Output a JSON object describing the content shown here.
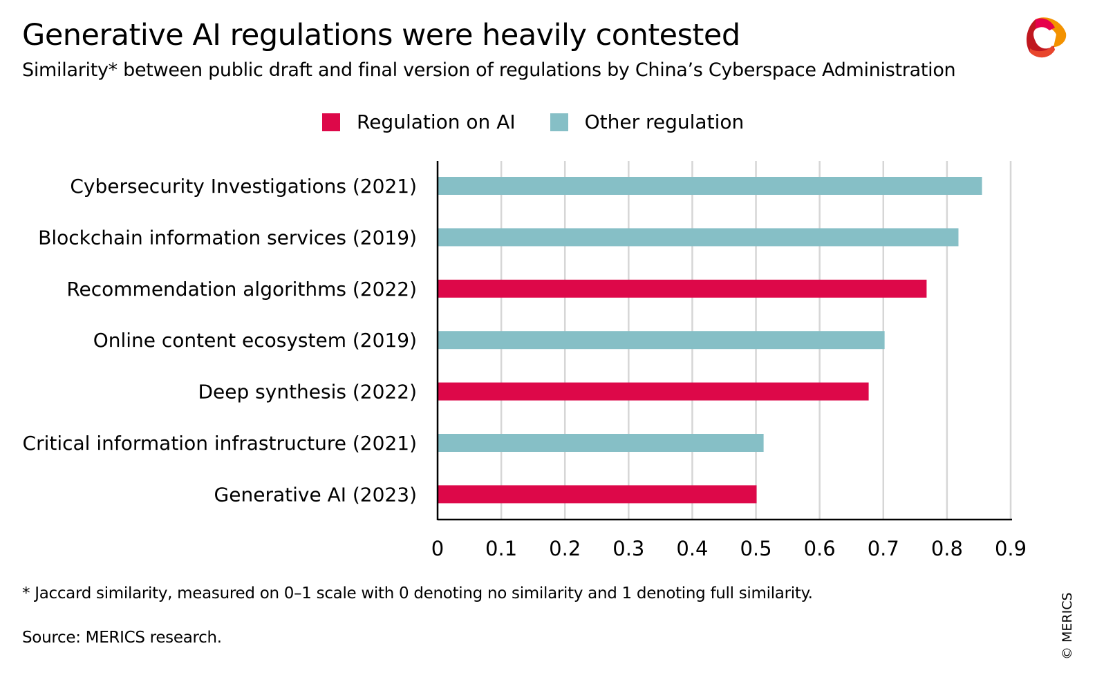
{
  "title": "Generative AI regulations were heavily contested",
  "subtitle": "Similarity* between public draft and final version of regulations by China’s Cyberspace Administration",
  "legend": [
    {
      "label": "Regulation on AI",
      "color": "#dd0849"
    },
    {
      "label": "Other regulation",
      "color": "#86bfc6"
    }
  ],
  "footnote": "* Jaccard similarity, measured on 0–1 scale with 0 denoting no similarity and 1 denoting full similarity.",
  "source": "Source: MERICS research.",
  "copyright": "© MERICS",
  "logo": "MERICS",
  "chart_data": {
    "type": "bar",
    "orientation": "horizontal",
    "categories": [
      "Cybersecurity Investigations (2021)",
      "Blockchain information services (2019)",
      "Recommendation algorithms (2022)",
      "Online content ecosystem (2019)",
      "Deep synthesis (2022)",
      "Critical information infrastructure (2021)",
      "Generative AI (2023)"
    ],
    "values": [
      0.855,
      0.818,
      0.768,
      0.702,
      0.677,
      0.512,
      0.501
    ],
    "groups": [
      "Other regulation",
      "Other regulation",
      "Regulation on AI",
      "Other regulation",
      "Regulation on AI",
      "Other regulation",
      "Regulation on AI"
    ],
    "xlim": [
      0,
      0.9
    ],
    "xticks": [
      "0",
      "0.1",
      "0.2",
      "0.3",
      "0.4",
      "0.5",
      "0.6",
      "0.7",
      "0.8",
      "0.9"
    ],
    "grid": true,
    "legend_position": "top"
  }
}
